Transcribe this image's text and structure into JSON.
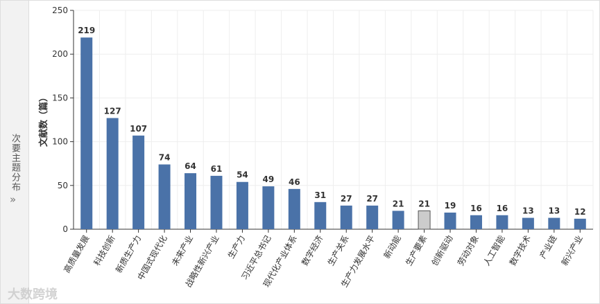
{
  "side_panel": {
    "label": "次要主题分布",
    "toggle": "»"
  },
  "watermark": "大数跨境",
  "chart_data": {
    "type": "bar",
    "y_label": "文献数（篇）",
    "categories": [
      "高质量发展",
      "科技创新",
      "新质生产力",
      "中国式现代化",
      "未来产业",
      "战略性新兴产业",
      "生产力",
      "习近平总书记",
      "现代化产业体系",
      "数字经济",
      "生产关系",
      "生产力发展水平",
      "新动能",
      "生产要素",
      "创新驱动",
      "劳动对象",
      "人工智能",
      "数字技术",
      "产业链",
      "新兴产业"
    ],
    "values": [
      219,
      127,
      107,
      74,
      64,
      61,
      54,
      49,
      46,
      31,
      27,
      27,
      21,
      21,
      19,
      16,
      16,
      13,
      13,
      12
    ],
    "color": "#4a72a8",
    "highlight": {
      "index": 13,
      "color": "#cccccc"
    },
    "ylim": [
      0,
      250
    ],
    "yticks": [
      0,
      50,
      100,
      150,
      200,
      250
    ],
    "grid": true
  }
}
